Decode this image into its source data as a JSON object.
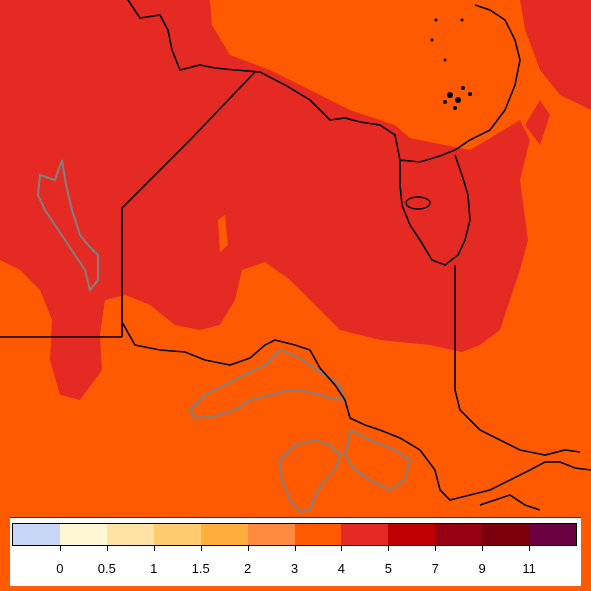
{
  "map": {
    "colors": {
      "orange_zone": "#ff5a00",
      "red_zone": "#e42a22",
      "water_outline": "#808080",
      "border_line": "#000000"
    }
  },
  "legend": {
    "swatches": [
      "#c9d7f6",
      "#fff6d4",
      "#ffe3a4",
      "#ffcb6e",
      "#ffad3c",
      "#ff8a40",
      "#ff5a00",
      "#e42a22",
      "#c00000",
      "#980011",
      "#7c000c",
      "#6a0040"
    ],
    "tick_labels": [
      "0",
      "0.5",
      "1",
      "1.5",
      "2",
      "3",
      "4",
      "5",
      "7",
      "9",
      "11"
    ]
  }
}
